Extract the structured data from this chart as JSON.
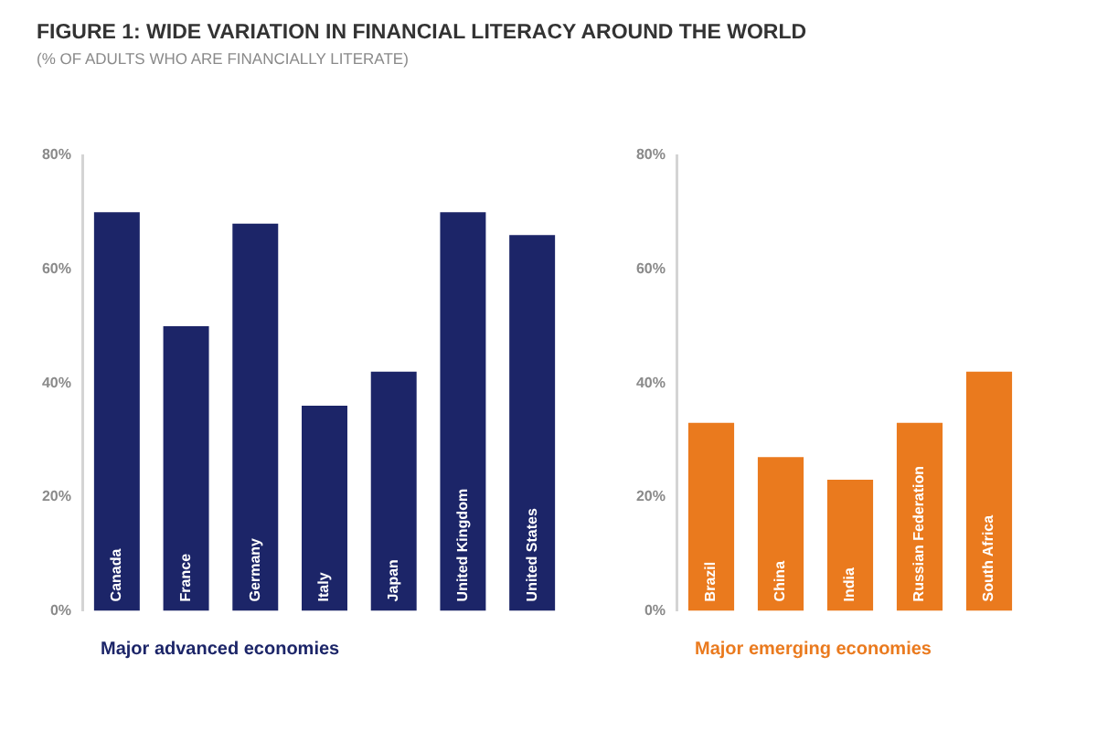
{
  "chart_data": [
    {
      "type": "bar",
      "title": "FIGURE 1: WIDE VARIATION IN FINANCIAL LITERACY AROUND THE WORLD",
      "subtitle": "(% OF ADULTS WHO ARE FINANCIALLY LITERATE)",
      "xlabel": "Major advanced economies",
      "categories": [
        "Canada",
        "France",
        "Germany",
        "Italy",
        "Japan",
        "United Kingdom",
        "United States"
      ],
      "values": [
        70,
        50,
        68,
        36,
        42,
        70,
        66
      ],
      "color": "#1c2568",
      "ylim": [
        0,
        80
      ],
      "yticks": [
        {
          "value": 0,
          "label": "0%"
        },
        {
          "value": 20,
          "label": "20%"
        },
        {
          "value": 40,
          "label": "40%"
        },
        {
          "value": 60,
          "label": "60%"
        },
        {
          "value": 80,
          "label": "80%"
        }
      ]
    },
    {
      "type": "bar",
      "xlabel": "Major emerging economies",
      "categories": [
        "Brazil",
        "China",
        "India",
        "Russian Federation",
        "South Africa"
      ],
      "values": [
        33,
        27,
        23,
        33,
        42
      ],
      "color": "#ea7a1e",
      "ylim": [
        0,
        80
      ],
      "yticks": [
        {
          "value": 0,
          "label": "0%"
        },
        {
          "value": 20,
          "label": "20%"
        },
        {
          "value": 40,
          "label": "40%"
        },
        {
          "value": 60,
          "label": "60%"
        },
        {
          "value": 80,
          "label": "80%"
        }
      ]
    }
  ]
}
